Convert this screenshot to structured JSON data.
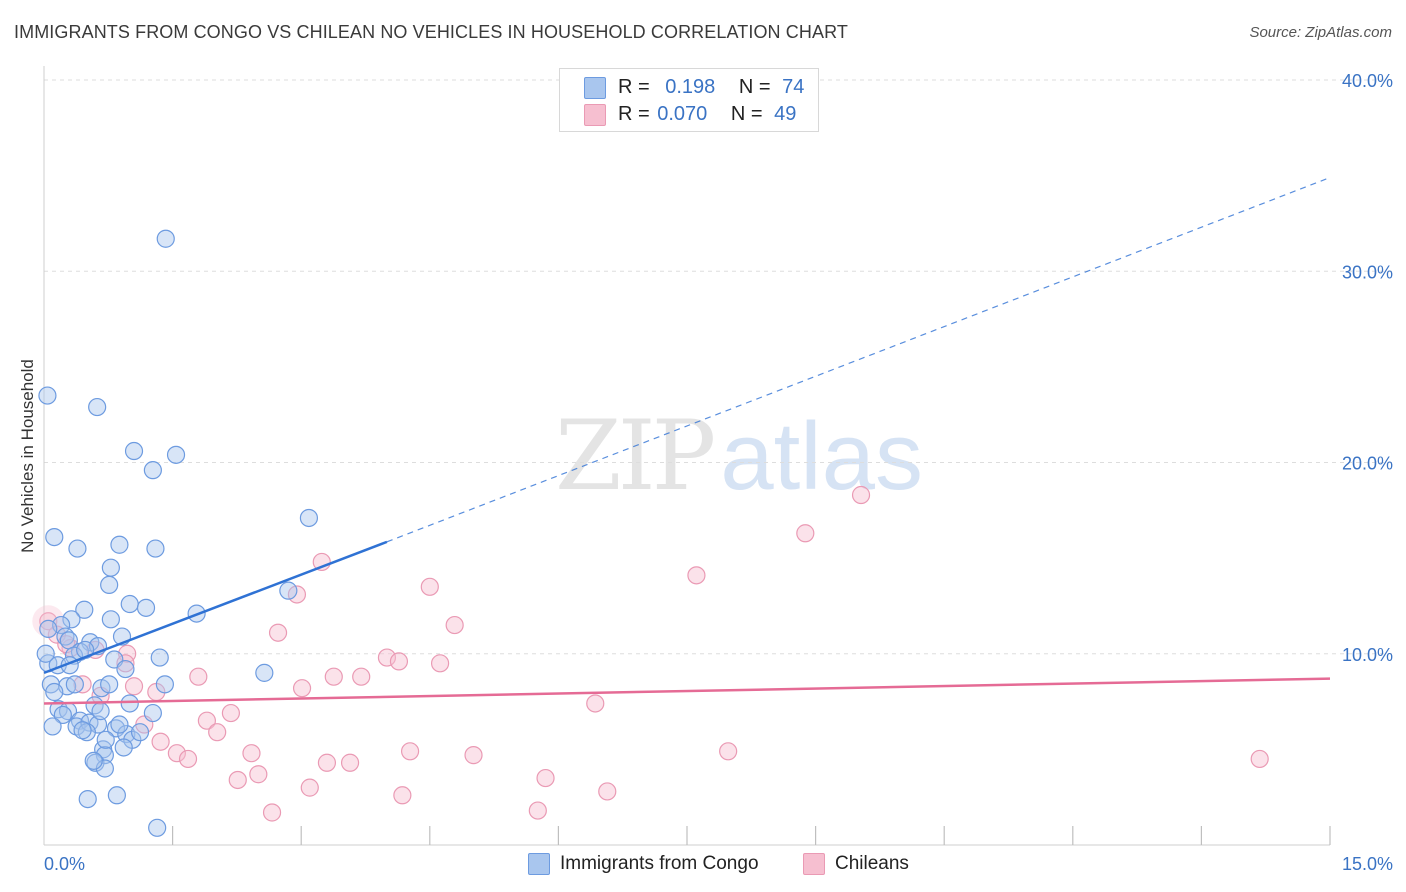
{
  "header": {
    "title": "IMMIGRANTS FROM CONGO VS CHILEAN NO VEHICLES IN HOUSEHOLD CORRELATION CHART",
    "source": "Source: ZipAtlas.com"
  },
  "watermark": {
    "zip": "ZIP",
    "atlas": "atlas"
  },
  "legend": {
    "congo": {
      "r_label": "R =",
      "r_value": "0.198",
      "n_label": "N =",
      "n_value": "74"
    },
    "chilean": {
      "r_label": "R =",
      "r_value": "0.070",
      "n_label": "N =",
      "n_value": "49"
    }
  },
  "colors": {
    "congo_fill": "#a9c6ee",
    "congo_stroke": "#6d9be0",
    "congo_line": "#2f72d4",
    "chilean_fill": "#f6bfd0",
    "chilean_stroke": "#ea9ab4",
    "chilean_line": "#e56b95",
    "tick_label": "#3a73c4",
    "grid": "#dddddd"
  },
  "chart_data": {
    "type": "scatter",
    "title": "IMMIGRANTS FROM CONGO VS CHILEAN NO VEHICLES IN HOUSEHOLD CORRELATION CHART",
    "xlabel": "",
    "ylabel": "No Vehicles in Household",
    "xlim": [
      0,
      15
    ],
    "ylim": [
      0,
      40
    ],
    "x_tick_labels": [
      "0.0%",
      "15.0%"
    ],
    "y_ticks": [
      10,
      20,
      30,
      40
    ],
    "y_tick_labels": [
      "10.0%",
      "20.0%",
      "30.0%",
      "40.0%"
    ],
    "grid": true,
    "legend_position": "top-center",
    "series": [
      {
        "name": "Immigrants from Congo",
        "points": [
          [
            1.42,
            31.7
          ],
          [
            0.04,
            23.5
          ],
          [
            0.62,
            22.9
          ],
          [
            1.05,
            20.6
          ],
          [
            1.54,
            20.4
          ],
          [
            1.27,
            19.6
          ],
          [
            3.09,
            17.1
          ],
          [
            0.12,
            16.1
          ],
          [
            0.39,
            15.5
          ],
          [
            0.88,
            15.7
          ],
          [
            1.3,
            15.5
          ],
          [
            0.78,
            14.5
          ],
          [
            0.76,
            13.6
          ],
          [
            2.85,
            13.3
          ],
          [
            1.0,
            12.6
          ],
          [
            0.47,
            12.3
          ],
          [
            1.19,
            12.4
          ],
          [
            1.78,
            12.1
          ],
          [
            0.78,
            11.8
          ],
          [
            0.32,
            11.8
          ],
          [
            0.2,
            11.5
          ],
          [
            0.05,
            11.3
          ],
          [
            0.25,
            10.9
          ],
          [
            0.29,
            10.7
          ],
          [
            0.91,
            10.9
          ],
          [
            0.54,
            10.6
          ],
          [
            0.63,
            10.4
          ],
          [
            0.42,
            10.1
          ],
          [
            0.05,
            9.5
          ],
          [
            0.16,
            9.4
          ],
          [
            0.82,
            9.7
          ],
          [
            0.95,
            9.2
          ],
          [
            1.35,
            9.8
          ],
          [
            2.57,
            9.0
          ],
          [
            0.08,
            8.4
          ],
          [
            0.27,
            8.3
          ],
          [
            0.36,
            8.4
          ],
          [
            0.67,
            8.2
          ],
          [
            0.76,
            8.4
          ],
          [
            1.41,
            8.4
          ],
          [
            0.17,
            7.1
          ],
          [
            0.28,
            7.0
          ],
          [
            0.59,
            7.3
          ],
          [
            0.22,
            6.8
          ],
          [
            1.0,
            7.4
          ],
          [
            1.27,
            6.9
          ],
          [
            0.42,
            6.5
          ],
          [
            0.38,
            6.2
          ],
          [
            0.53,
            6.4
          ],
          [
            0.1,
            6.2
          ],
          [
            0.63,
            6.3
          ],
          [
            0.84,
            6.1
          ],
          [
            0.96,
            5.8
          ],
          [
            1.03,
            5.5
          ],
          [
            0.5,
            5.9
          ],
          [
            0.93,
            5.1
          ],
          [
            0.69,
            5.0
          ],
          [
            0.71,
            4.7
          ],
          [
            0.6,
            4.3
          ],
          [
            0.71,
            4.0
          ],
          [
            0.51,
            2.4
          ],
          [
            0.85,
            2.6
          ],
          [
            1.32,
            0.9
          ],
          [
            0.12,
            8.0
          ],
          [
            0.35,
            9.9
          ],
          [
            0.48,
            10.2
          ],
          [
            0.02,
            10.0
          ],
          [
            0.45,
            6.0
          ],
          [
            0.88,
            6.3
          ],
          [
            1.12,
            5.9
          ],
          [
            0.58,
            4.4
          ],
          [
            0.72,
            5.5
          ],
          [
            0.3,
            9.4
          ],
          [
            0.66,
            7.0
          ]
        ]
      },
      {
        "name": "Chileans",
        "points": [
          [
            9.53,
            18.3
          ],
          [
            8.88,
            16.3
          ],
          [
            3.24,
            14.8
          ],
          [
            7.61,
            14.1
          ],
          [
            4.5,
            13.5
          ],
          [
            2.95,
            13.1
          ],
          [
            4.79,
            11.5
          ],
          [
            2.73,
            11.1
          ],
          [
            0.05,
            11.7
          ],
          [
            0.15,
            11.0
          ],
          [
            0.31,
            10.3
          ],
          [
            0.26,
            10.5
          ],
          [
            0.6,
            10.2
          ],
          [
            0.97,
            10.0
          ],
          [
            0.95,
            9.5
          ],
          [
            4.0,
            9.8
          ],
          [
            4.14,
            9.6
          ],
          [
            4.62,
            9.5
          ],
          [
            1.8,
            8.8
          ],
          [
            3.38,
            8.8
          ],
          [
            3.7,
            8.8
          ],
          [
            3.01,
            8.2
          ],
          [
            1.05,
            8.3
          ],
          [
            1.31,
            8.0
          ],
          [
            0.45,
            8.4
          ],
          [
            0.66,
            7.8
          ],
          [
            6.43,
            7.4
          ],
          [
            2.18,
            6.9
          ],
          [
            1.9,
            6.5
          ],
          [
            1.17,
            6.3
          ],
          [
            2.02,
            5.9
          ],
          [
            1.36,
            5.4
          ],
          [
            1.55,
            4.8
          ],
          [
            1.68,
            4.5
          ],
          [
            2.42,
            4.8
          ],
          [
            3.3,
            4.3
          ],
          [
            3.57,
            4.3
          ],
          [
            4.27,
            4.9
          ],
          [
            5.01,
            4.7
          ],
          [
            7.98,
            4.9
          ],
          [
            14.18,
            4.5
          ],
          [
            2.5,
            3.7
          ],
          [
            2.26,
            3.4
          ],
          [
            5.85,
            3.5
          ],
          [
            3.1,
            3.0
          ],
          [
            4.18,
            2.6
          ],
          [
            6.57,
            2.8
          ],
          [
            2.66,
            1.7
          ],
          [
            5.76,
            1.8
          ]
        ]
      }
    ],
    "trendlines": [
      {
        "series": "Immigrants from Congo",
        "x0": 0,
        "y0": 9.0,
        "x1": 4.0,
        "y1": 15.85,
        "dash_x1": 15.0,
        "dash_y1": 34.9
      },
      {
        "series": "Chileans",
        "x0": 0,
        "y0": 7.4,
        "x1": 15.0,
        "y1": 8.7
      }
    ]
  },
  "bottom_legend": {
    "congo_label": "Immigrants from Congo",
    "chilean_label": "Chileans"
  }
}
